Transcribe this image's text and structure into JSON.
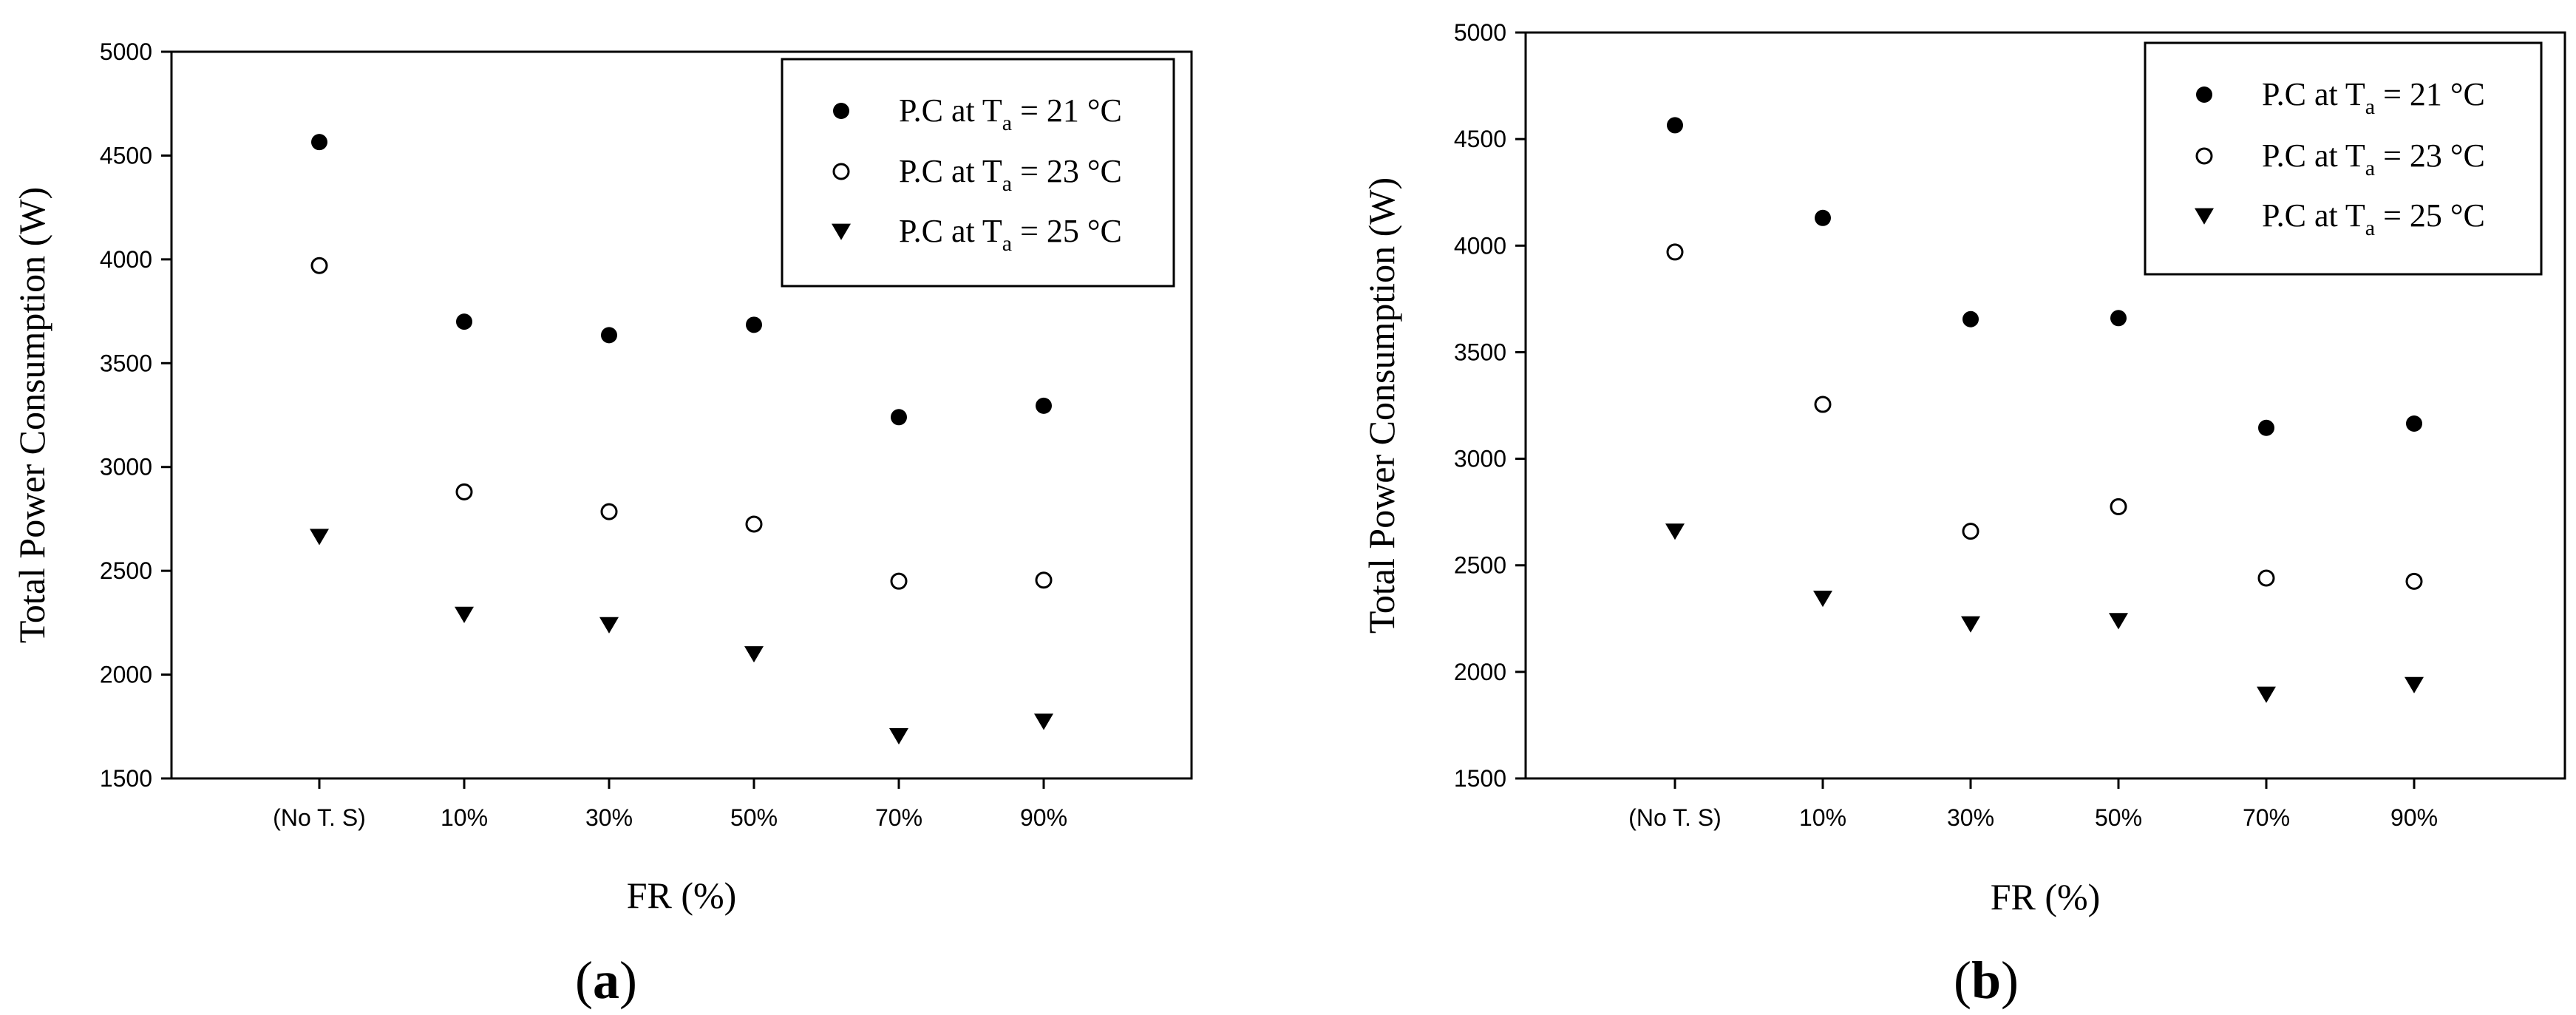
{
  "chart_data": [
    {
      "type": "scatter",
      "panel_label": "a",
      "categories": [
        "(No T. S)",
        "10%",
        "30%",
        "50%",
        "70%",
        "90%"
      ],
      "xlabel": "FR (%)",
      "ylabel": "Total Power Consumption (W)",
      "ylim": [
        1500,
        5000
      ],
      "yticks": [
        1500,
        2000,
        2500,
        3000,
        3500,
        4000,
        4500,
        5000
      ],
      "grid": false,
      "legend_position": "top-right",
      "series": [
        {
          "name_main": "P.C at T",
          "name_sub": "a",
          "name_tail": " = 21 °C",
          "marker": "filled-circle",
          "values": [
            4565,
            3700,
            3635,
            3685,
            3240,
            3295
          ]
        },
        {
          "name_main": "P.C at T",
          "name_sub": "a",
          "name_tail": " = 23 °C",
          "marker": "open-circle",
          "values": [
            3970,
            2880,
            2785,
            2725,
            2450,
            2455
          ]
        },
        {
          "name_main": "P.C at T",
          "name_sub": "a",
          "name_tail": " = 25 °C",
          "marker": "filled-triangle-down",
          "values": [
            2665,
            2290,
            2240,
            2100,
            1705,
            1775
          ]
        }
      ]
    },
    {
      "type": "scatter",
      "panel_label": "b",
      "categories": [
        "(No T. S)",
        "10%",
        "30%",
        "50%",
        "70%",
        "90%"
      ],
      "xlabel": "FR (%)",
      "ylabel": "Total Power Consumption (W)",
      "ylim": [
        1500,
        5000
      ],
      "yticks": [
        1500,
        2000,
        2500,
        3000,
        3500,
        4000,
        4500,
        5000
      ],
      "grid": false,
      "legend_position": "top-right",
      "series": [
        {
          "name_main": "P.C at T",
          "name_sub": "a",
          "name_tail": " = 21 °C",
          "marker": "filled-circle",
          "values": [
            4565,
            4130,
            3655,
            3660,
            3145,
            3165
          ]
        },
        {
          "name_main": "P.C at T",
          "name_sub": "a",
          "name_tail": " = 23 °C",
          "marker": "open-circle",
          "values": [
            3970,
            3255,
            2660,
            2775,
            2440,
            2425
          ]
        },
        {
          "name_main": "P.C at T",
          "name_sub": "a",
          "name_tail": " = 25 °C",
          "marker": "filled-triangle-down",
          "values": [
            2660,
            2345,
            2225,
            2240,
            1895,
            1940
          ]
        }
      ]
    }
  ]
}
